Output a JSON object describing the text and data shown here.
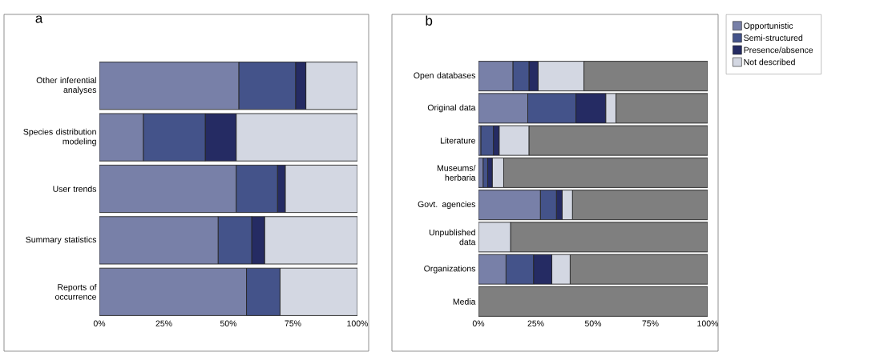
{
  "chart_data": [
    {
      "type": "bar",
      "title": "a",
      "orientation": "horizontal",
      "stacked": true,
      "legend": false,
      "categories": [
        "Other inferential analyses",
        "Species distribution modeling",
        "User trends",
        "Summary statistics",
        "Reports of occurrence"
      ],
      "xlim": [
        0,
        100
      ],
      "xticks": [
        {
          "value": 0,
          "label": "0%"
        },
        {
          "value": 25,
          "label": "25%"
        },
        {
          "value": 50,
          "label": "50%"
        },
        {
          "value": 75,
          "label": "75%"
        },
        {
          "value": 100,
          "label": "100%"
        }
      ],
      "series": [
        {
          "color": "#7880a8",
          "values": [
            54,
            17,
            53,
            46,
            57
          ]
        },
        {
          "color": "#44538a",
          "values": [
            22,
            24,
            16,
            13,
            13
          ]
        },
        {
          "color": "#252b63",
          "values": [
            4,
            12,
            3,
            5,
            0
          ]
        },
        {
          "color": "#d3d7e2",
          "values": [
            20,
            47,
            28,
            36,
            30
          ]
        }
      ]
    },
    {
      "type": "bar",
      "title": "b",
      "orientation": "horizontal",
      "stacked": true,
      "legend": "right",
      "categories": [
        "Open databases",
        "Original data",
        "Literature",
        "Museums/ herbaria",
        "Govt. agencies",
        "Unpublished data",
        "Organizations",
        "Media"
      ],
      "xlim": [
        0,
        100
      ],
      "xticks": [
        {
          "value": 0,
          "label": "0%"
        },
        {
          "value": 25,
          "label": "25%"
        },
        {
          "value": 50,
          "label": "50%"
        },
        {
          "value": 75,
          "label": "75%"
        },
        {
          "value": 100,
          "label": "100%"
        }
      ],
      "series": [
        {
          "name": "Opportunistic",
          "color": "#7880a8",
          "values": [
            15,
            21.5,
            1,
            2,
            27,
            0,
            12,
            0
          ]
        },
        {
          "name": "Semi-structured",
          "color": "#44538a",
          "values": [
            7,
            21,
            5.5,
            2,
            7,
            0,
            12,
            0
          ]
        },
        {
          "name": "Presence/absence",
          "color": "#252b63",
          "values": [
            4,
            13,
            2.5,
            2,
            2.5,
            0,
            8,
            0
          ]
        },
        {
          "name": "Not described",
          "color": "#d3d7e2",
          "values": [
            20,
            4.5,
            13,
            5,
            4.5,
            14,
            8,
            0
          ]
        },
        {
          "color": "#7f7f7f",
          "values": [
            54,
            40,
            78,
            89,
            59,
            86,
            60,
            100
          ]
        }
      ]
    }
  ]
}
